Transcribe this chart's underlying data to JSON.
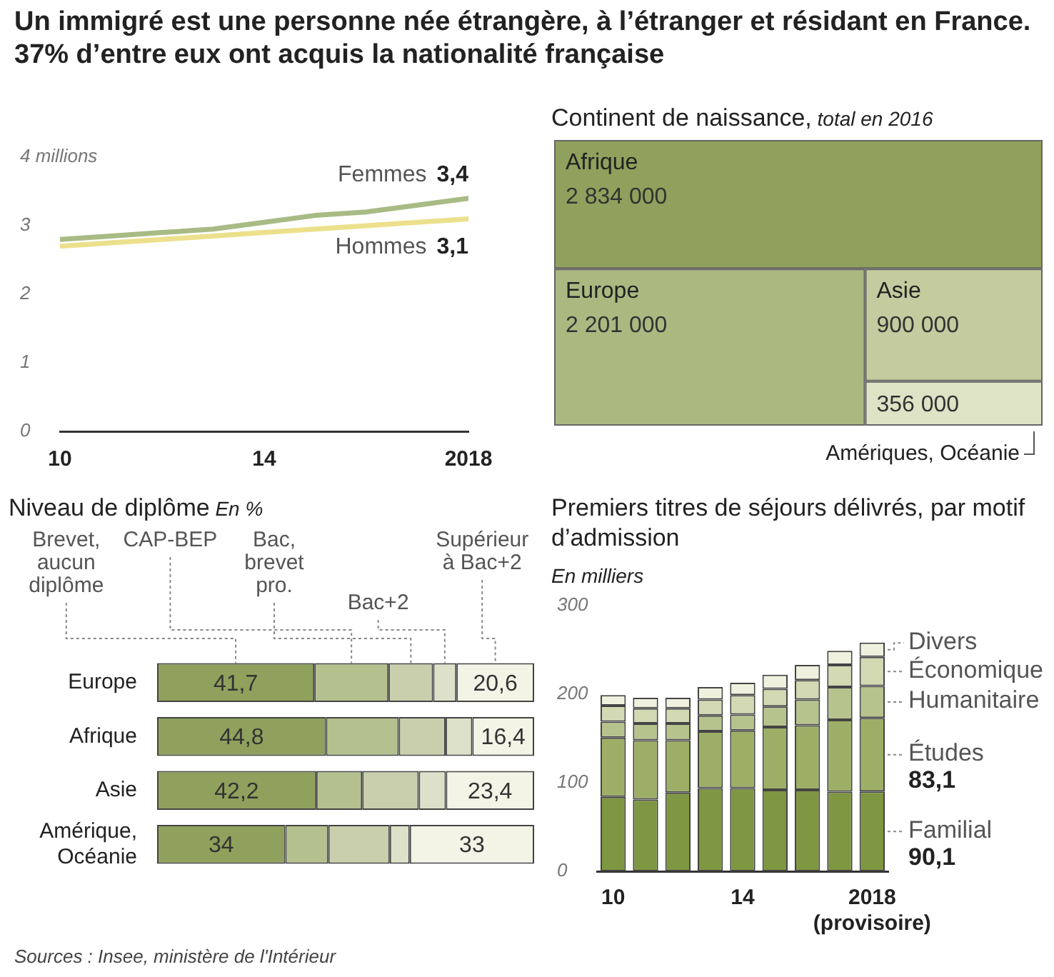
{
  "chart_data": [
    {
      "type": "other",
      "title": "Un immigré est une personne née étrangère, à l’étranger et résidant en France. 37% d’entre eux ont acquis la nationalité française",
      "annotations": [
        "Sources : Insee, ministère de l'Intérieur"
      ]
    },
    {
      "type": "line",
      "x": [
        2010,
        2011,
        2012,
        2013,
        2014,
        2015,
        2016,
        2017,
        2018
      ],
      "xlim": [
        2010,
        2018
      ],
      "xticks": [
        {
          "value": 2010,
          "label": "10"
        },
        {
          "value": 2014,
          "label": "14"
        },
        2018
      ],
      "ylim": [
        0,
        4
      ],
      "yticks": [
        0,
        1,
        2,
        3,
        {
          "value": 4,
          "label": "4 millions"
        }
      ],
      "series": [
        {
          "name": "Femmes",
          "color": "#a9bb85",
          "values": [
            2.8,
            2.85,
            2.9,
            2.95,
            3.05,
            3.15,
            3.2,
            3.3,
            3.4
          ],
          "value_labels": [
            null,
            null,
            null,
            null,
            null,
            null,
            null,
            null,
            "3,4"
          ]
        },
        {
          "name": "Hommes",
          "color": "#ece08c",
          "values": [
            2.7,
            2.75,
            2.8,
            2.85,
            2.9,
            2.95,
            3.0,
            3.05,
            3.1
          ],
          "value_labels": [
            null,
            null,
            null,
            null,
            null,
            null,
            null,
            null,
            "3,1"
          ]
        }
      ]
    },
    {
      "type": "other",
      "title": "Continent de naissance,",
      "subtitle": "total en 2016",
      "categories": [
        "Afrique",
        "Europe",
        "Asie",
        "Amériques, Océanie"
      ],
      "values": [
        2834000,
        2201000,
        900000,
        356000
      ],
      "value_labels": [
        "2 834 000",
        "2 201 000",
        "900 000",
        "356 000"
      ],
      "colors": [
        "#8fa15c",
        "#abb981",
        "#c4cb9f",
        "#dfe3c6"
      ]
    },
    {
      "type": "bar",
      "orientation": "horizontal",
      "stacked": true,
      "title": "Niveau de diplôme",
      "subtitle": "En %",
      "categories": [
        "Europe",
        "Afrique",
        "Asie",
        "Amérique, Océanie"
      ],
      "xlim": [
        0,
        100
      ],
      "tick_labels": "y",
      "series": [
        {
          "name": "Brevet, aucun diplôme",
          "color": "#8fa15c",
          "values": [
            41.7,
            44.8,
            42.2,
            34
          ],
          "value_labels": [
            "41,7",
            "44,8",
            "42,2",
            "34"
          ]
        },
        {
          "name": "CAP-BEP",
          "color": "#b4c08e",
          "values": [
            19.7,
            19.3,
            12.2,
            11.4
          ]
        },
        {
          "name": "Bac, brevet pro.",
          "color": "#c9cfac",
          "values": [
            11.8,
            12.4,
            15.0,
            16.3
          ]
        },
        {
          "name": "Bac+2",
          "color": "#dde1c9",
          "values": [
            6.2,
            7.1,
            7.2,
            5.3
          ]
        },
        {
          "name": "Supérieur à Bac+2",
          "color": "#f3f4e6",
          "values": [
            20.6,
            16.4,
            23.4,
            33
          ],
          "value_labels": [
            "20,6",
            "16,4",
            "23,4",
            "33"
          ]
        }
      ]
    },
    {
      "type": "bar",
      "stacked": true,
      "title": "Premiers titres de séjours délivrés, par motif d’admission",
      "subtitle": "En milliers",
      "categories": [
        "10",
        null,
        null,
        null,
        "14",
        null,
        null,
        null,
        "2018 (provisoire)"
      ],
      "ylim": [
        0,
        300
      ],
      "yticks": [
        0,
        100,
        200,
        300
      ],
      "series": [
        {
          "name": "Familial",
          "color": "#7f9742",
          "values": [
            84,
            81,
            89,
            94,
            94,
            92,
            92,
            90,
            90.1
          ],
          "value_labels": [
            null,
            null,
            null,
            null,
            null,
            null,
            null,
            null,
            "90,1"
          ]
        },
        {
          "name": "Études",
          "color": "#9daf66",
          "values": [
            67,
            67,
            59,
            64,
            65,
            71,
            73,
            81,
            83.1
          ],
          "value_labels": [
            null,
            null,
            null,
            null,
            null,
            null,
            null,
            null,
            "83,1"
          ]
        },
        {
          "name": "Humanitaire",
          "color": "#b7c38d",
          "values": [
            18,
            19,
            19,
            18,
            18,
            23,
            29,
            37,
            36
          ]
        },
        {
          "name": "Économique",
          "color": "#d2d9b3",
          "values": [
            18,
            17,
            17,
            18,
            22,
            20,
            22,
            25,
            33
          ]
        },
        {
          "name": "Divers",
          "color": "#eff1de",
          "values": [
            12,
            12,
            12,
            14,
            14,
            16,
            17,
            16,
            16
          ]
        }
      ]
    }
  ]
}
